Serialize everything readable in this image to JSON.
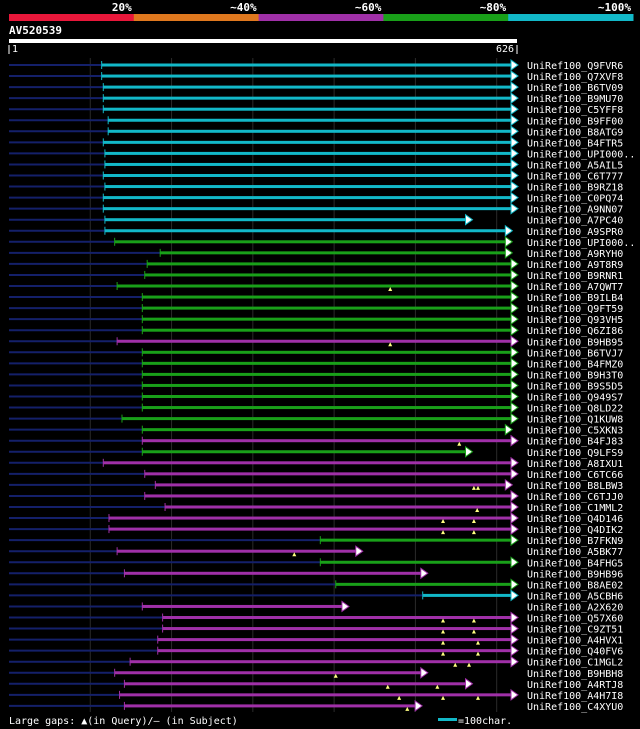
{
  "chart_data": {
    "type": "alignment-overview",
    "query": {
      "name": "AV520539",
      "start": "1",
      "end": "626",
      "length": 626
    },
    "scale_labels": [
      "20%",
      "~40%",
      "~60%",
      "~80%",
      "~100%"
    ],
    "scale_colors": [
      "#e8173a",
      "#e0781e",
      "#a030a8",
      "#19a019",
      "#12b8c8"
    ],
    "hits": [
      {
        "id": "UniRef100_Q9FVR6",
        "color": "#12b8c8",
        "start": 115,
        "end": 626,
        "arrow": true,
        "lead": 0.3,
        "gaps": []
      },
      {
        "id": "UniRef100_Q7XVF8",
        "color": "#12b8c8",
        "start": 115,
        "end": 626,
        "arrow": true,
        "lead": 0.3,
        "gaps": []
      },
      {
        "id": "UniRef100_B6TV09",
        "color": "#12b8c8",
        "start": 117,
        "end": 626,
        "arrow": true,
        "lead": 0.3,
        "gaps": []
      },
      {
        "id": "UniRef100_B9MU70",
        "color": "#12b8c8",
        "start": 117,
        "end": 626,
        "arrow": true,
        "lead": 0.3,
        "gaps": []
      },
      {
        "id": "UniRef100_C5YFF8",
        "color": "#12b8c8",
        "start": 117,
        "end": 626,
        "arrow": true,
        "lead": 0.3,
        "gaps": []
      },
      {
        "id": "UniRef100_B9FF00",
        "color": "#12b8c8",
        "start": 123,
        "end": 626,
        "arrow": true,
        "lead": 0.3,
        "gaps": []
      },
      {
        "id": "UniRef100_B8ATG9",
        "color": "#12b8c8",
        "start": 123,
        "end": 626,
        "arrow": true,
        "lead": 0.3,
        "gaps": []
      },
      {
        "id": "UniRef100_B4FTR5",
        "color": "#12b8c8",
        "start": 117,
        "end": 626,
        "arrow": true,
        "lead": 0.3,
        "gaps": []
      },
      {
        "id": "UniRef100_UPI000..",
        "color": "#12b8c8",
        "start": 119,
        "end": 626,
        "arrow": true,
        "lead": 0.3,
        "gaps": []
      },
      {
        "id": "UniRef100_A5AIL5",
        "color": "#12b8c8",
        "start": 119,
        "end": 626,
        "arrow": true,
        "lead": 0.3,
        "gaps": []
      },
      {
        "id": "UniRef100_C6T777",
        "color": "#12b8c8",
        "start": 117,
        "end": 626,
        "arrow": true,
        "lead": 0.3,
        "gaps": []
      },
      {
        "id": "UniRef100_B9RZ18",
        "color": "#12b8c8",
        "start": 119,
        "end": 626,
        "arrow": true,
        "lead": 0.3,
        "gaps": []
      },
      {
        "id": "UniRef100_C0PQ74",
        "color": "#12b8c8",
        "start": 117,
        "end": 626,
        "arrow": true,
        "lead": 0.3,
        "gaps": []
      },
      {
        "id": "UniRef100_A9NN07",
        "color": "#12b8c8",
        "start": 117,
        "end": 626,
        "arrow": true,
        "lead": 0.3,
        "gaps": []
      },
      {
        "id": "UniRef100_A7PC40",
        "color": "#12b8c8",
        "start": 119,
        "end": 570,
        "arrow": true,
        "lead": 0.3,
        "gaps": []
      },
      {
        "id": "UniRef100_A9SPR0",
        "color": "#12b8c8",
        "start": 119,
        "end": 619,
        "arrow": true,
        "lead": 0.3,
        "gaps": []
      },
      {
        "id": "UniRef100_UPI000..",
        "color": "#19a019",
        "start": 131,
        "end": 619,
        "arrow": true,
        "lead": 0.3,
        "gaps": []
      },
      {
        "id": "UniRef100_A9RYH0",
        "color": "#19a019",
        "start": 187,
        "end": 619,
        "arrow": true,
        "lead": 0.3,
        "gaps": []
      },
      {
        "id": "UniRef100_A9T8R9",
        "color": "#19a019",
        "start": 171,
        "end": 626,
        "arrow": true,
        "lead": 0.3,
        "gaps": []
      },
      {
        "id": "UniRef100_B9RNR1",
        "color": "#19a019",
        "start": 168,
        "end": 626,
        "arrow": true,
        "lead": 0.3,
        "gaps": []
      },
      {
        "id": "UniRef100_A7QWT7",
        "color": "#19a019",
        "start": 134,
        "end": 626,
        "arrow": true,
        "lead": 0.3,
        "gaps": [
          470
        ]
      },
      {
        "id": "UniRef100_B9ILB4",
        "color": "#19a019",
        "start": 165,
        "end": 626,
        "arrow": true,
        "lead": 0.3,
        "gaps": []
      },
      {
        "id": "UniRef100_Q9FT59",
        "color": "#19a019",
        "start": 165,
        "end": 626,
        "arrow": true,
        "lead": 0.3,
        "gaps": []
      },
      {
        "id": "UniRef100_Q93VH5",
        "color": "#19a019",
        "start": 165,
        "end": 626,
        "arrow": true,
        "lead": 0.3,
        "gaps": []
      },
      {
        "id": "UniRef100_Q6ZI86",
        "color": "#19a019",
        "start": 165,
        "end": 626,
        "arrow": true,
        "lead": 0.3,
        "gaps": []
      },
      {
        "id": "UniRef100_B9HB95",
        "color": "#a030a8",
        "start": 134,
        "end": 626,
        "arrow": true,
        "lead": 0.3,
        "gaps": [
          470
        ]
      },
      {
        "id": "UniRef100_B6TVJ7",
        "color": "#19a019",
        "start": 165,
        "end": 626,
        "arrow": true,
        "lead": 0.3,
        "gaps": []
      },
      {
        "id": "UniRef100_B4FMZ0",
        "color": "#19a019",
        "start": 165,
        "end": 626,
        "arrow": true,
        "lead": 0.3,
        "gaps": []
      },
      {
        "id": "UniRef100_B9H3T0",
        "color": "#19a019",
        "start": 165,
        "end": 626,
        "arrow": true,
        "lead": 0.3,
        "gaps": []
      },
      {
        "id": "UniRef100_B9S5D5",
        "color": "#19a019",
        "start": 165,
        "end": 626,
        "arrow": true,
        "lead": 0.3,
        "gaps": []
      },
      {
        "id": "UniRef100_Q949S7",
        "color": "#19a019",
        "start": 165,
        "end": 626,
        "arrow": true,
        "lead": 0.3,
        "gaps": []
      },
      {
        "id": "UniRef100_Q8LD22",
        "color": "#19a019",
        "start": 165,
        "end": 626,
        "arrow": true,
        "lead": 0.3,
        "gaps": []
      },
      {
        "id": "UniRef100_Q1KUW8",
        "color": "#19a019",
        "start": 140,
        "end": 626,
        "arrow": true,
        "lead": 0.3,
        "gaps": []
      },
      {
        "id": "UniRef100_C5XKN3",
        "color": "#19a019",
        "start": 165,
        "end": 619,
        "arrow": true,
        "lead": 0.3,
        "gaps": []
      },
      {
        "id": "UniRef100_B4FJ83",
        "color": "#a030a8",
        "start": 165,
        "end": 626,
        "arrow": true,
        "lead": 0.3,
        "gaps": [
          555
        ]
      },
      {
        "id": "UniRef100_Q9LFS9",
        "color": "#19a019",
        "start": 165,
        "end": 570,
        "arrow": true,
        "lead": 0.3,
        "gaps": []
      },
      {
        "id": "UniRef100_A8IXU1",
        "color": "#a030a8",
        "start": 117,
        "end": 626,
        "arrow": true,
        "lead": 0.3,
        "gaps": []
      },
      {
        "id": "UniRef100_C6TC66",
        "color": "#a030a8",
        "start": 168,
        "end": 626,
        "arrow": true,
        "lead": 0.3,
        "gaps": []
      },
      {
        "id": "UniRef100_B8LBW3",
        "color": "#a030a8",
        "start": 181,
        "end": 619,
        "arrow": true,
        "lead": 0.3,
        "gaps": [
          573,
          578
        ]
      },
      {
        "id": "UniRef100_C6TJJ0",
        "color": "#a030a8",
        "start": 168,
        "end": 626,
        "arrow": true,
        "lead": 0.3,
        "gaps": []
      },
      {
        "id": "UniRef100_C1MML2",
        "color": "#a030a8",
        "start": 193,
        "end": 626,
        "arrow": true,
        "lead": 0.3,
        "gaps": [
          577
        ]
      },
      {
        "id": "UniRef100_Q4D146",
        "color": "#a030a8",
        "start": 124,
        "end": 626,
        "arrow": true,
        "lead": 0.3,
        "gaps": [
          535,
          573
        ]
      },
      {
        "id": "UniRef100_Q4DIK2",
        "color": "#a030a8",
        "start": 124,
        "end": 626,
        "arrow": true,
        "lead": 0.3,
        "gaps": [
          535,
          573
        ]
      },
      {
        "id": "UniRef100_B7FKN9",
        "color": "#19a019",
        "start": 384,
        "end": 626,
        "arrow": true,
        "lead": 0.3,
        "gaps": []
      },
      {
        "id": "UniRef100_A5BK77",
        "color": "#a030a8",
        "start": 134,
        "end": 435,
        "arrow": true,
        "lead": 0.3,
        "gaps": [
          352
        ]
      },
      {
        "id": "UniRef100_B4FHG5",
        "color": "#19a019",
        "start": 384,
        "end": 626,
        "arrow": true,
        "lead": 0.3,
        "gaps": []
      },
      {
        "id": "UniRef100_B9HB96",
        "color": "#a030a8",
        "start": 143,
        "end": 515,
        "arrow": true,
        "lead": 0.3,
        "gaps": []
      },
      {
        "id": "UniRef100_B8AE02",
        "color": "#19a019",
        "start": 403,
        "end": 626,
        "arrow": true,
        "lead": 0.3,
        "gaps": []
      },
      {
        "id": "UniRef100_A5CBH6",
        "color": "#12b8c8",
        "start": 510,
        "end": 626,
        "arrow": true,
        "lead": 0.3,
        "gaps": []
      },
      {
        "id": "UniRef100_A2X620",
        "color": "#a030a8",
        "start": 165,
        "end": 418,
        "arrow": true,
        "lead": 0.3,
        "gaps": []
      },
      {
        "id": "UniRef100_Q57X60",
        "color": "#a030a8",
        "start": 190,
        "end": 626,
        "arrow": true,
        "lead": 0.3,
        "gaps": [
          535,
          573
        ]
      },
      {
        "id": "UniRef100_C9ZT51",
        "color": "#a030a8",
        "start": 190,
        "end": 626,
        "arrow": true,
        "lead": 0.3,
        "gaps": [
          535,
          573
        ]
      },
      {
        "id": "UniRef100_A4HVX1",
        "color": "#a030a8",
        "start": 184,
        "end": 626,
        "arrow": true,
        "lead": 0.3,
        "gaps": [
          535,
          578
        ]
      },
      {
        "id": "UniRef100_Q40FV6",
        "color": "#a030a8",
        "start": 184,
        "end": 626,
        "arrow": true,
        "lead": 0.3,
        "gaps": [
          535,
          578
        ]
      },
      {
        "id": "UniRef100_C1MGL2",
        "color": "#a030a8",
        "start": 150,
        "end": 626,
        "arrow": true,
        "lead": 0.3,
        "gaps": [
          550,
          567
        ]
      },
      {
        "id": "UniRef100_B9HBH8",
        "color": "#a030a8",
        "start": 131,
        "end": 515,
        "arrow": true,
        "lead": 0.3,
        "gaps": [
          403
        ]
      },
      {
        "id": "UniRef100_A4RTJ8",
        "color": "#a030a8",
        "start": 143,
        "end": 570,
        "arrow": true,
        "lead": 0.3,
        "gaps": [
          467,
          528
        ]
      },
      {
        "id": "UniRef100_A4H7I8",
        "color": "#a030a8",
        "start": 137,
        "end": 626,
        "arrow": true,
        "lead": 0.3,
        "gaps": [
          481,
          535,
          578
        ]
      },
      {
        "id": "UniRef100_C4XYU0",
        "color": "#a030a8",
        "start": 143,
        "end": 508,
        "arrow": true,
        "lead": 0.3,
        "gaps": [
          491
        ]
      }
    ],
    "legend": {
      "gaps_text": "Large gaps: ▲(in Query)/– (in Subject)",
      "scale_text": "=100char."
    }
  }
}
